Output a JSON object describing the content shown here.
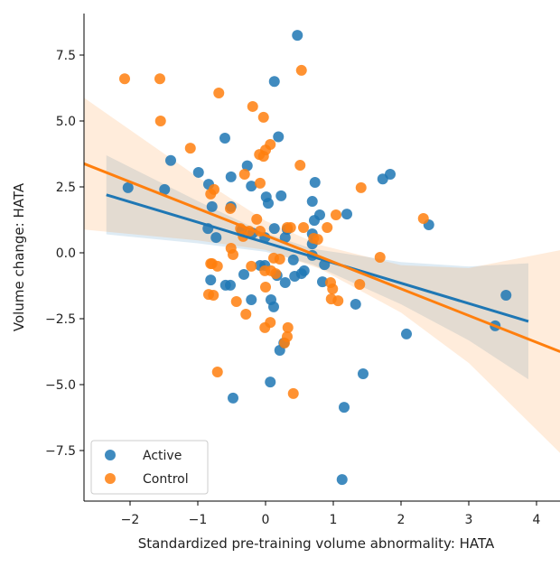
{
  "chart_data": {
    "type": "scatter",
    "title": "",
    "xlabel": "Standardized pre-training volume abnormality: HATA",
    "ylabel": "Volume change: HATA",
    "xlim": [
      -2.68,
      4.35
    ],
    "ylim": [
      -9.4,
      9.1
    ],
    "xticks": [
      -2,
      -1,
      0,
      1,
      2,
      3,
      4
    ],
    "xtick_labels": [
      "−2",
      "−1",
      "0",
      "1",
      "2",
      "3",
      "4"
    ],
    "yticks": [
      -7.5,
      -5.0,
      -2.5,
      0.0,
      2.5,
      5.0,
      7.5
    ],
    "ytick_labels": [
      "−7.5",
      "−5.0",
      "−2.5",
      "0.0",
      "2.5",
      "5.0",
      "7.5"
    ],
    "grid": false,
    "legend": {
      "placement": "bottom-left",
      "entries": [
        "Active",
        "Control"
      ]
    },
    "series": [
      {
        "name": "Active",
        "color": "#1f77b4",
        "points": [
          [
            0.47,
            8.25
          ],
          [
            0.13,
            6.5
          ],
          [
            -0.6,
            4.35
          ],
          [
            0.19,
            4.4
          ],
          [
            -1.4,
            3.5
          ],
          [
            -0.99,
            3.05
          ],
          [
            1.84,
            2.98
          ],
          [
            1.73,
            2.8
          ],
          [
            0.73,
            2.67
          ],
          [
            -0.51,
            2.88
          ],
          [
            -0.84,
            2.6
          ],
          [
            -0.27,
            3.3
          ],
          [
            -2.03,
            2.47
          ],
          [
            -1.49,
            2.4
          ],
          [
            -0.21,
            2.53
          ],
          [
            0.01,
            2.12
          ],
          [
            0.69,
            1.95
          ],
          [
            0.23,
            2.16
          ],
          [
            -0.79,
            1.75
          ],
          [
            0.04,
            1.88
          ],
          [
            -0.51,
            1.75
          ],
          [
            0.8,
            1.44
          ],
          [
            1.2,
            1.47
          ],
          [
            0.72,
            1.23
          ],
          [
            2.41,
            1.06
          ],
          [
            -0.85,
            0.92
          ],
          [
            0.13,
            0.92
          ],
          [
            0.32,
            0.89
          ],
          [
            0.69,
            0.72
          ],
          [
            0.69,
            0.34
          ],
          [
            0.29,
            0.58
          ],
          [
            -0.73,
            0.58
          ],
          [
            -0.01,
            0.58
          ],
          [
            -0.35,
            0.86
          ],
          [
            -0.19,
            0.75
          ],
          [
            0.69,
            -0.1
          ],
          [
            -0.01,
            -0.48
          ],
          [
            -0.08,
            -0.48
          ],
          [
            0.57,
            -0.68
          ],
          [
            0.41,
            -0.27
          ],
          [
            0.87,
            -0.45
          ],
          [
            0.43,
            -0.89
          ],
          [
            0.53,
            -0.79
          ],
          [
            0.17,
            -0.86
          ],
          [
            -0.32,
            -0.82
          ],
          [
            -0.81,
            -1.03
          ],
          [
            -0.59,
            -1.23
          ],
          [
            -0.52,
            -1.23
          ],
          [
            0.29,
            -1.13
          ],
          [
            0.84,
            -1.1
          ],
          [
            -0.21,
            -1.78
          ],
          [
            0.08,
            -1.78
          ],
          [
            0.12,
            -2.05
          ],
          [
            1.33,
            -1.95
          ],
          [
            3.55,
            -1.61
          ],
          [
            3.39,
            -2.77
          ],
          [
            2.08,
            -3.08
          ],
          [
            0.21,
            -3.7
          ],
          [
            0.27,
            -3.42
          ],
          [
            1.44,
            -4.59
          ],
          [
            0.07,
            -4.9
          ],
          [
            -0.48,
            -5.51
          ],
          [
            1.16,
            -5.86
          ],
          [
            1.13,
            -8.6
          ]
        ],
        "fit": {
          "x": [
            -2.35,
            3.88
          ],
          "y": [
            2.2,
            -2.6
          ]
        },
        "ci": {
          "x": [
            -2.35,
            -1,
            0,
            0.7,
            2,
            3,
            3.88
          ],
          "center": [
            2.2,
            1.16,
            0.39,
            -0.15,
            -1.15,
            -1.92,
            -2.6
          ],
          "half_width": [
            1.5,
            0.8,
            0.35,
            0.3,
            0.8,
            1.4,
            2.2
          ]
        }
      },
      {
        "name": "Control",
        "color": "#ff7f0e",
        "points": [
          [
            -2.08,
            6.6
          ],
          [
            -1.56,
            6.6
          ],
          [
            0.53,
            6.92
          ],
          [
            -0.69,
            6.06
          ],
          [
            -1.55,
            5.0
          ],
          [
            -0.19,
            5.55
          ],
          [
            -0.03,
            5.14
          ],
          [
            -1.11,
            3.97
          ],
          [
            0.07,
            4.11
          ],
          [
            0.0,
            3.9
          ],
          [
            -0.09,
            3.73
          ],
          [
            -0.03,
            3.66
          ],
          [
            0.51,
            3.32
          ],
          [
            -0.31,
            2.98
          ],
          [
            -0.08,
            2.64
          ],
          [
            -0.76,
            2.4
          ],
          [
            -0.81,
            2.23
          ],
          [
            1.41,
            2.47
          ],
          [
            2.33,
            1.3
          ],
          [
            -0.52,
            1.68
          ],
          [
            -0.13,
            1.27
          ],
          [
            1.04,
            1.44
          ],
          [
            0.56,
            0.96
          ],
          [
            0.37,
            0.96
          ],
          [
            0.91,
            0.96
          ],
          [
            -0.24,
            0.82
          ],
          [
            -0.08,
            0.82
          ],
          [
            -0.37,
            0.92
          ],
          [
            0.32,
            0.96
          ],
          [
            0.71,
            0.55
          ],
          [
            0.77,
            0.51
          ],
          [
            -0.33,
            0.62
          ],
          [
            -0.51,
            0.17
          ],
          [
            -0.48,
            -0.07
          ],
          [
            -0.79,
            -0.41
          ],
          [
            -0.81,
            -0.41
          ],
          [
            -0.71,
            -0.51
          ],
          [
            0.12,
            -0.2
          ],
          [
            0.21,
            -0.24
          ],
          [
            -0.21,
            -0.51
          ],
          [
            -0.01,
            -0.68
          ],
          [
            0.08,
            -0.68
          ],
          [
            0.15,
            -0.79
          ],
          [
            1.69,
            -0.17
          ],
          [
            0.96,
            -1.13
          ],
          [
            0.99,
            -1.37
          ],
          [
            0.97,
            -1.75
          ],
          [
            1.07,
            -1.82
          ],
          [
            1.39,
            -1.2
          ],
          [
            -0.84,
            -1.58
          ],
          [
            -0.77,
            -1.61
          ],
          [
            -0.43,
            -1.85
          ],
          [
            0.0,
            -1.3
          ],
          [
            -0.29,
            -2.33
          ],
          [
            -0.01,
            -2.84
          ],
          [
            0.07,
            -2.64
          ],
          [
            0.33,
            -2.84
          ],
          [
            0.32,
            -3.18
          ],
          [
            0.28,
            -3.42
          ],
          [
            -0.71,
            -4.52
          ],
          [
            0.41,
            -5.34
          ]
        ],
        "fit": {
          "x": [
            -2.68,
            4.35
          ],
          "y": [
            3.38,
            -3.75
          ]
        },
        "ci": {
          "x": [
            -2.68,
            -1,
            0,
            0.8,
            2,
            3,
            4.35
          ],
          "center": [
            3.38,
            1.67,
            0.66,
            -0.15,
            -1.37,
            -2.38,
            -3.75
          ],
          "half_width": [
            2.5,
            1.2,
            0.55,
            0.45,
            0.9,
            1.8,
            3.85
          ]
        }
      }
    ]
  }
}
